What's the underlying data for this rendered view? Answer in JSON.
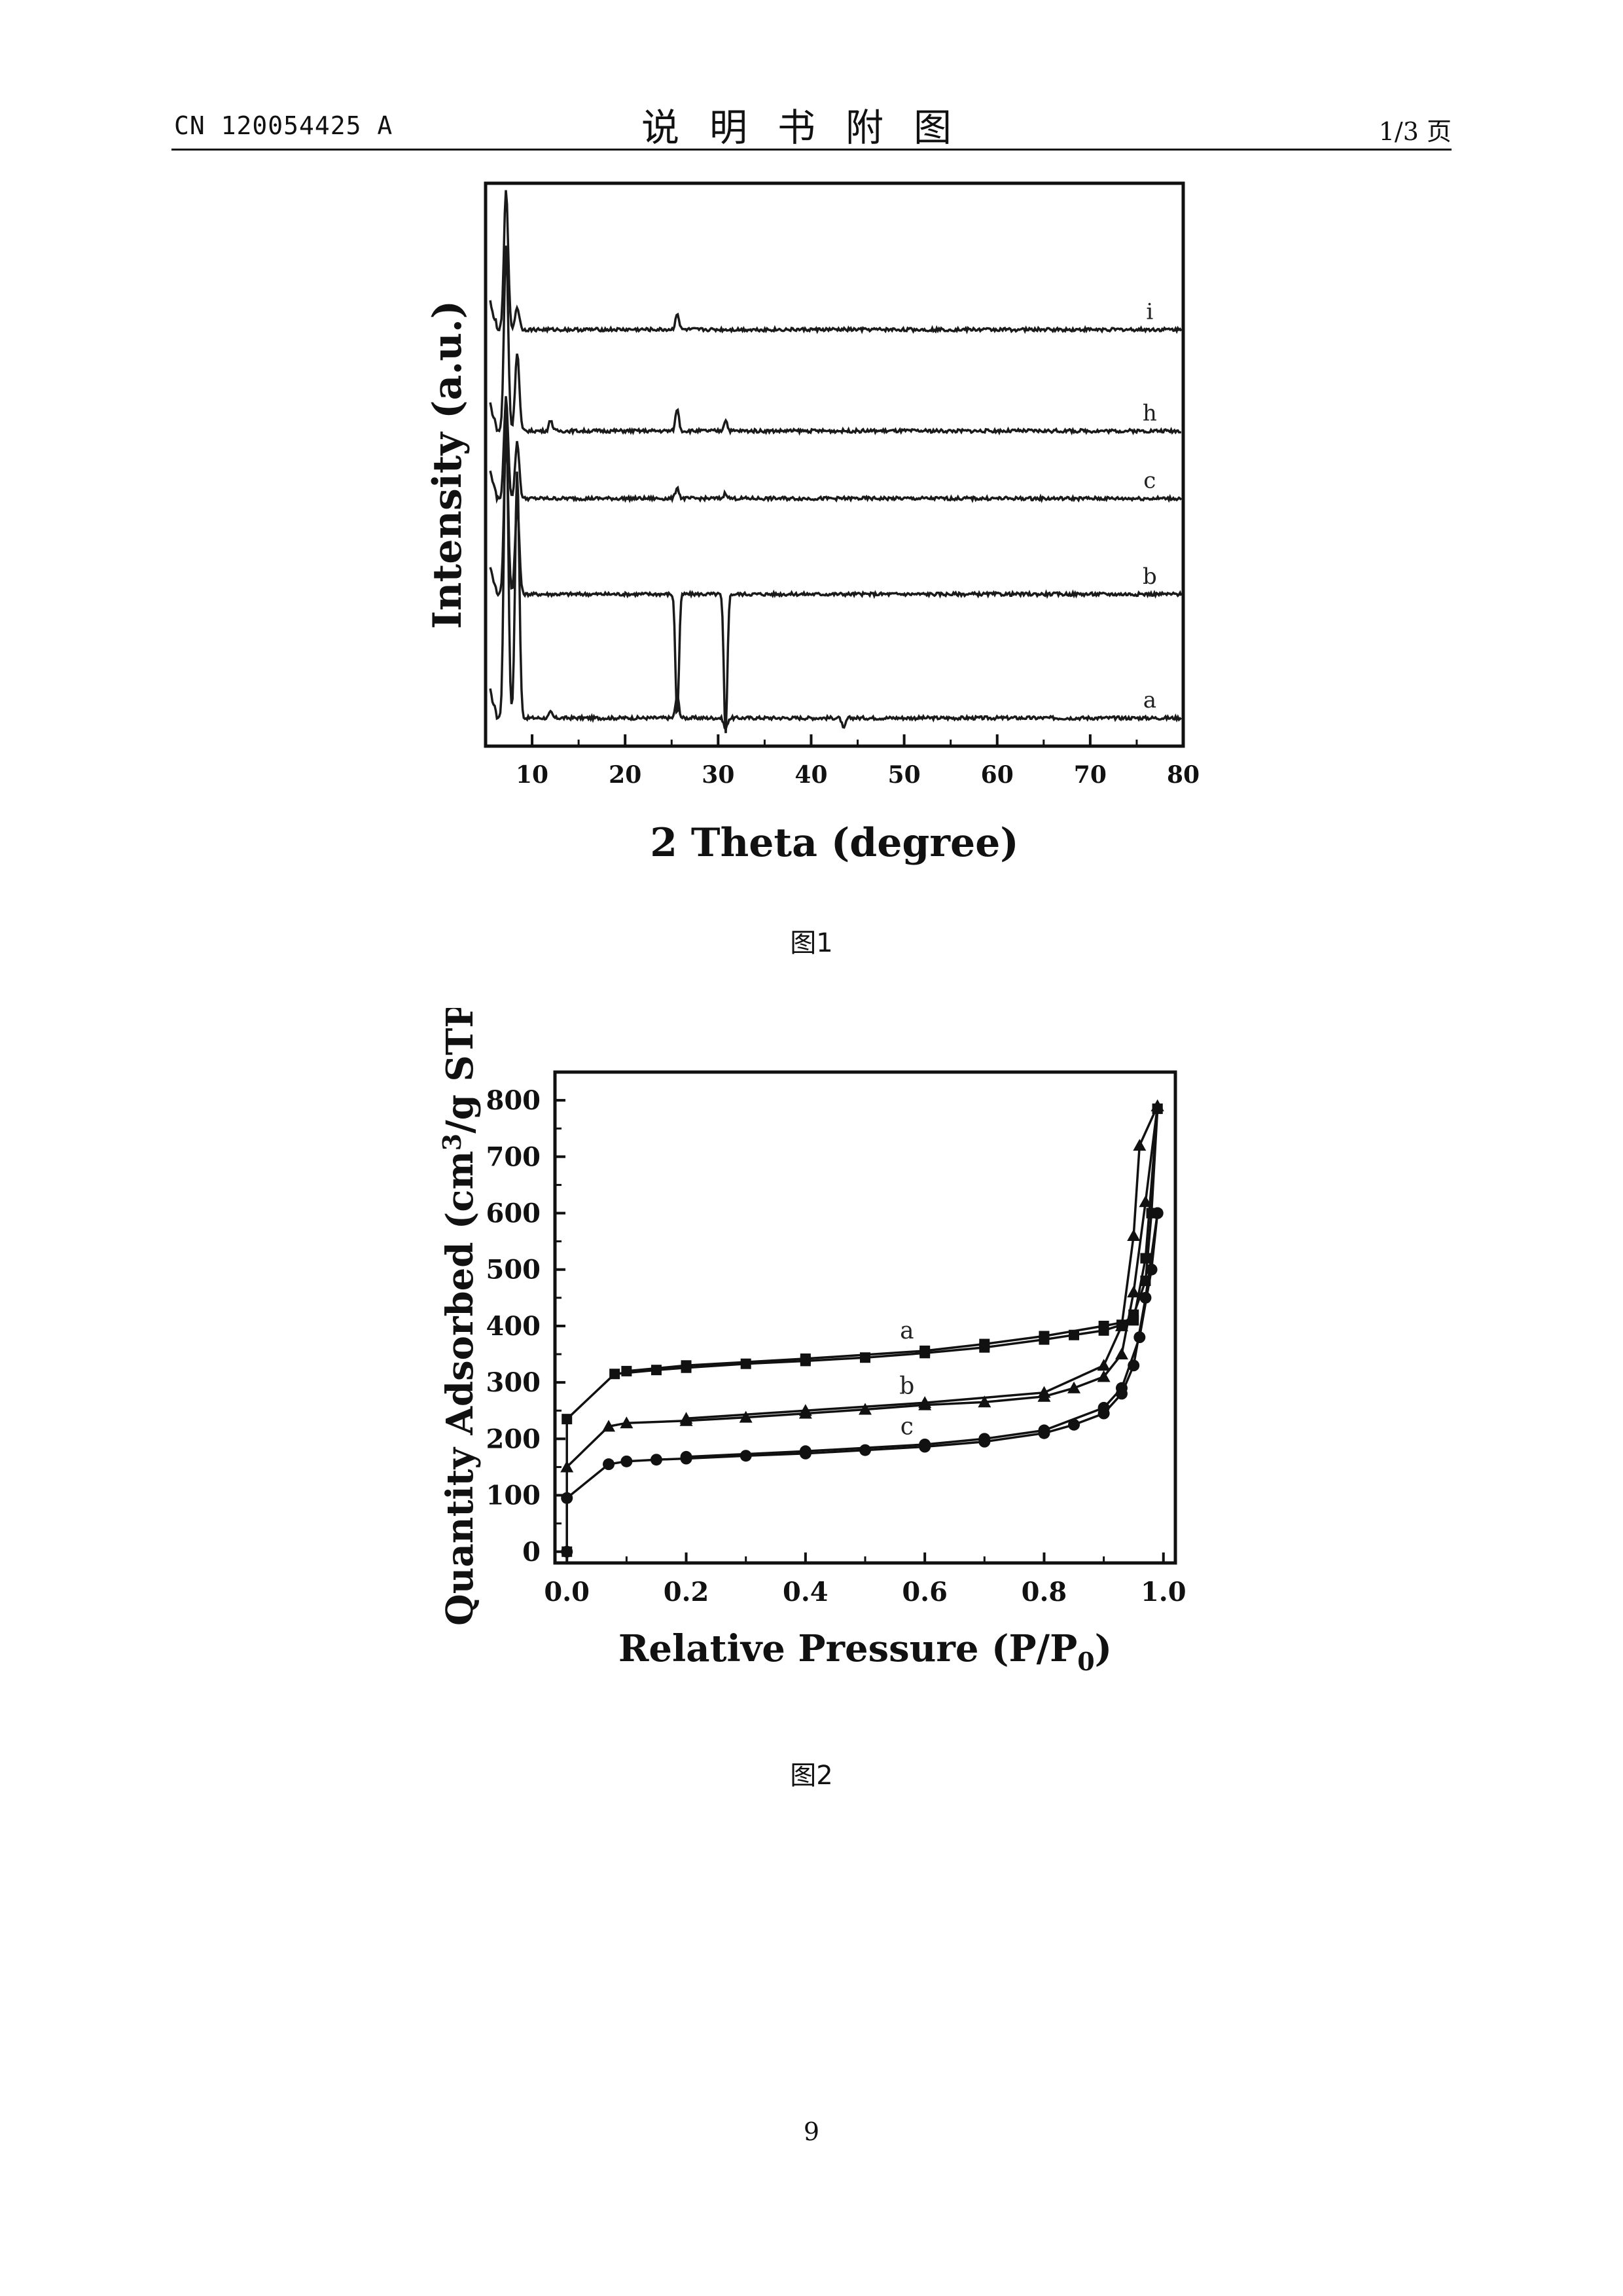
{
  "header": {
    "doc_number": "CN 120054425 A",
    "title": "说明书附图",
    "page_of": "1/3 页"
  },
  "figures": [
    {
      "caption": "图1"
    },
    {
      "caption": "图2"
    }
  ],
  "page_number": "9",
  "chart_data": [
    {
      "type": "line",
      "xlabel": "2 Theta (degree)",
      "ylabel": "Intensity (a.u.)",
      "xlim": [
        5,
        80
      ],
      "xticks": [
        10,
        20,
        30,
        40,
        50,
        60,
        70,
        80
      ],
      "yticks_shown": false,
      "series": [
        {
          "name": "a",
          "baseline": 0.05,
          "peaks": [
            [
              7.2,
              0.62
            ],
            [
              8.4,
              0.49
            ],
            [
              12.0,
              0.06
            ],
            [
              25.6,
              0.09
            ],
            [
              30.8,
              0.03
            ],
            [
              43.5,
              0.03
            ]
          ]
        },
        {
          "name": "b",
          "baseline": 0.27,
          "peaks": [
            [
              7.2,
              0.55
            ],
            [
              8.4,
              0.43
            ],
            [
              25.6,
              0.05
            ],
            [
              30.8,
              0.02
            ]
          ]
        },
        {
          "name": "c",
          "baseline": 0.44,
          "peaks": [
            [
              7.2,
              0.62
            ],
            [
              8.4,
              0.54
            ],
            [
              25.6,
              0.46
            ],
            [
              30.8,
              0.45
            ]
          ]
        },
        {
          "name": "h",
          "baseline": 0.56,
          "peaks": [
            [
              7.2,
              0.89
            ],
            [
              8.4,
              0.7
            ],
            [
              12.0,
              0.58
            ],
            [
              25.6,
              0.6
            ],
            [
              30.8,
              0.58
            ]
          ]
        },
        {
          "name": "i",
          "baseline": 0.74,
          "peaks": [
            [
              7.2,
              0.99
            ],
            [
              8.4,
              0.78
            ],
            [
              25.6,
              0.77
            ]
          ]
        }
      ]
    },
    {
      "type": "line",
      "xlabel": "Relative Pressure (P/P",
      "xlabel_sub": "0",
      "xlabel_end": ")",
      "ylabel": "Quantity Adsorbed (cm",
      "ylabel_sup": "3",
      "ylabel_end": "/g STP)",
      "xlim": [
        -0.02,
        1.02
      ],
      "ylim": [
        -20,
        850
      ],
      "xticks": [
        "0.0",
        "0.2",
        "0.4",
        "0.6",
        "0.8",
        "1.0"
      ],
      "yticks": [
        "0",
        "100",
        "200",
        "300",
        "400",
        "500",
        "600",
        "700",
        "800"
      ],
      "series": [
        {
          "name": "a",
          "marker": "square",
          "adsorption": [
            [
              0.0,
              0
            ],
            [
              0.0,
              235
            ],
            [
              0.08,
              315
            ],
            [
              0.15,
              322
            ],
            [
              0.2,
              326
            ],
            [
              0.3,
              333
            ],
            [
              0.4,
              338
            ],
            [
              0.5,
              344
            ],
            [
              0.6,
              352
            ],
            [
              0.7,
              362
            ],
            [
              0.8,
              376
            ],
            [
              0.85,
              384
            ],
            [
              0.9,
              392
            ],
            [
              0.93,
              402
            ],
            [
              0.95,
              420
            ],
            [
              0.97,
              480
            ],
            [
              0.98,
              600
            ],
            [
              0.99,
              785
            ]
          ],
          "desorption": [
            [
              0.99,
              785
            ],
            [
              0.97,
              520
            ],
            [
              0.95,
              410
            ],
            [
              0.9,
              400
            ],
            [
              0.8,
              382
            ],
            [
              0.7,
              368
            ],
            [
              0.6,
              356
            ],
            [
              0.4,
              342
            ],
            [
              0.2,
              330
            ],
            [
              0.1,
              320
            ]
          ]
        },
        {
          "name": "b",
          "marker": "triangle",
          "adsorption": [
            [
              0.0,
              150
            ],
            [
              0.07,
              222
            ],
            [
              0.1,
              228
            ],
            [
              0.2,
              232
            ],
            [
              0.3,
              238
            ],
            [
              0.4,
              245
            ],
            [
              0.5,
              252
            ],
            [
              0.6,
              260
            ],
            [
              0.7,
              265
            ],
            [
              0.8,
              275
            ],
            [
              0.85,
              290
            ],
            [
              0.9,
              310
            ],
            [
              0.93,
              350
            ],
            [
              0.95,
              460
            ],
            [
              0.97,
              620
            ],
            [
              0.99,
              790
            ]
          ],
          "desorption": [
            [
              0.99,
              790
            ],
            [
              0.96,
              720
            ],
            [
              0.95,
              560
            ],
            [
              0.93,
              400
            ],
            [
              0.9,
              330
            ],
            [
              0.8,
              282
            ],
            [
              0.6,
              264
            ],
            [
              0.4,
              250
            ],
            [
              0.2,
              236
            ]
          ]
        },
        {
          "name": "c",
          "marker": "circle",
          "adsorption": [
            [
              0.0,
              0
            ],
            [
              0.0,
              95
            ],
            [
              0.07,
              155
            ],
            [
              0.1,
              160
            ],
            [
              0.15,
              163
            ],
            [
              0.2,
              165
            ],
            [
              0.3,
              170
            ],
            [
              0.4,
              174
            ],
            [
              0.5,
              180
            ],
            [
              0.6,
              186
            ],
            [
              0.7,
              195
            ],
            [
              0.8,
              210
            ],
            [
              0.85,
              225
            ],
            [
              0.9,
              245
            ],
            [
              0.93,
              280
            ],
            [
              0.95,
              330
            ],
            [
              0.97,
              450
            ],
            [
              0.99,
              600
            ]
          ],
          "desorption": [
            [
              0.99,
              600
            ],
            [
              0.98,
              500
            ],
            [
              0.96,
              380
            ],
            [
              0.93,
              290
            ],
            [
              0.9,
              255
            ],
            [
              0.8,
              215
            ],
            [
              0.7,
              200
            ],
            [
              0.6,
              190
            ],
            [
              0.4,
              178
            ],
            [
              0.2,
              168
            ]
          ]
        }
      ]
    }
  ]
}
